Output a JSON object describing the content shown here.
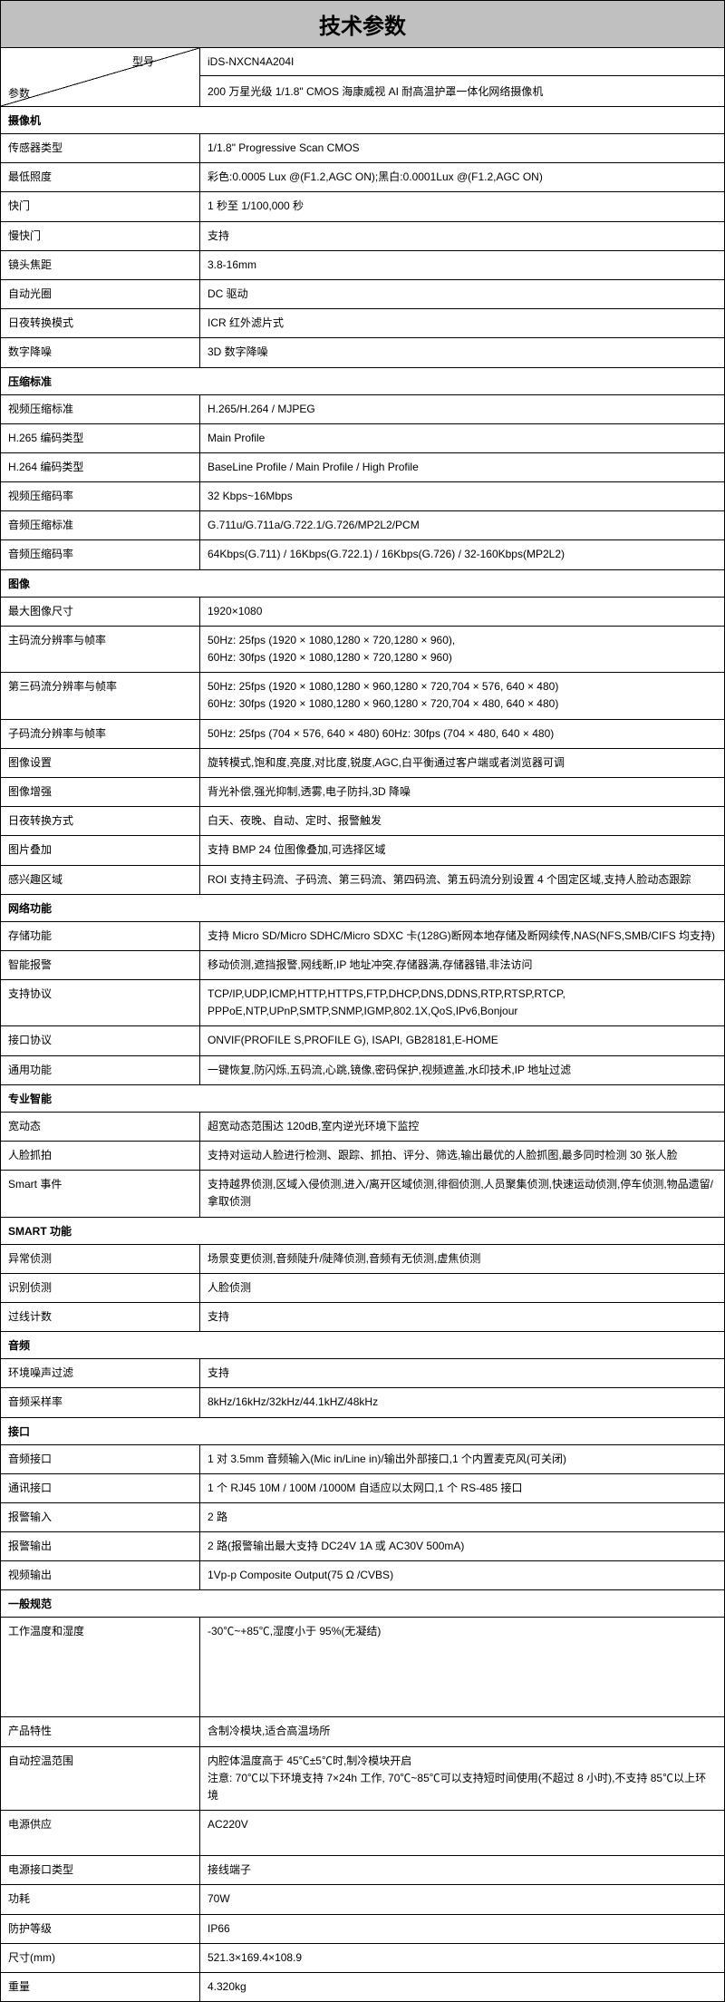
{
  "title": "技术参数",
  "header": {
    "param_label": "参数",
    "model_label": "型号",
    "model_value": "iDS-NXCN4A204I",
    "desc_value": "200 万星光级 1/1.8\" CMOS 海康威视 AI 耐高温护罩一体化网络摄像机"
  },
  "sections": [
    {
      "name": "摄像机",
      "rows": [
        {
          "label": "传感器类型",
          "value": "1/1.8\" Progressive Scan CMOS"
        },
        {
          "label": "最低照度",
          "value": "彩色:0.0005 Lux @(F1.2,AGC ON);黑白:0.0001Lux @(F1.2,AGC ON)"
        },
        {
          "label": "快门",
          "value": "1 秒至 1/100,000 秒"
        },
        {
          "label": "慢快门",
          "value": "支持"
        },
        {
          "label": "镜头焦距",
          "value": "3.8-16mm"
        },
        {
          "label": "自动光圈",
          "value": "DC 驱动"
        },
        {
          "label": "日夜转换模式",
          "value": "ICR 红外滤片式"
        },
        {
          "label": "数字降噪",
          "value": "3D 数字降噪"
        }
      ]
    },
    {
      "name": "压缩标准",
      "rows": [
        {
          "label": "视频压缩标准",
          "value": "H.265/H.264 / MJPEG"
        },
        {
          "label": "H.265 编码类型",
          "value": "Main Profile"
        },
        {
          "label": "H.264 编码类型",
          "value": "BaseLine Profile / Main Profile / High Profile"
        },
        {
          "label": "视频压缩码率",
          "value": "32 Kbps~16Mbps"
        },
        {
          "label": "音频压缩标准",
          "value": "G.711u/G.711a/G.722.1/G.726/MP2L2/PCM"
        },
        {
          "label": "音频压缩码率",
          "value": "64Kbps(G.711) / 16Kbps(G.722.1) / 16Kbps(G.726) / 32-160Kbps(MP2L2)"
        }
      ]
    },
    {
      "name": "图像",
      "rows": [
        {
          "label": "最大图像尺寸",
          "value": "1920×1080"
        },
        {
          "label": "主码流分辨率与帧率",
          "value": "50Hz: 25fps (1920 × 1080,1280 × 720,1280 × 960),\n60Hz: 30fps (1920 × 1080,1280 × 720,1280 × 960)"
        },
        {
          "label": "第三码流分辨率与帧率",
          "value": "50Hz: 25fps (1920 × 1080,1280 × 960,1280 × 720,704 × 576, 640 × 480)\n60Hz: 30fps (1920 × 1080,1280 × 960,1280 × 720,704 × 480, 640 × 480)"
        },
        {
          "label": "子码流分辨率与帧率",
          "value": "50Hz: 25fps (704 × 576, 640 × 480)      60Hz: 30fps (704 × 480, 640 × 480)"
        },
        {
          "label": "图像设置",
          "value": "旋转模式,饱和度,亮度,对比度,锐度,AGC,白平衡通过客户端或者浏览器可调"
        },
        {
          "label": "图像增强",
          "value": "背光补偿,强光抑制,透雾,电子防抖,3D 降噪"
        },
        {
          "label": "日夜转换方式",
          "value": "白天、夜晚、自动、定时、报警触发"
        },
        {
          "label": "图片叠加",
          "value": "支持 BMP 24 位图像叠加,可选择区域"
        },
        {
          "label": "感兴趣区域",
          "value": "ROI 支持主码流、子码流、第三码流、第四码流、第五码流分别设置 4 个固定区域,支持人脸动态跟踪"
        }
      ]
    },
    {
      "name": "网络功能",
      "rows": [
        {
          "label": "存储功能",
          "value": "支持 Micro SD/Micro SDHC/Micro SDXC 卡(128G)断网本地存储及断网续传,NAS(NFS,SMB/CIFS 均支持)"
        },
        {
          "label": "智能报警",
          "value": "移动侦测,遮挡报警,网线断,IP 地址冲突,存储器满,存储器错,非法访问"
        },
        {
          "label": "支持协议",
          "value": "TCP/IP,UDP,ICMP,HTTP,HTTPS,FTP,DHCP,DNS,DDNS,RTP,RTSP,RTCP,\nPPPoE,NTP,UPnP,SMTP,SNMP,IGMP,802.1X,QoS,IPv6,Bonjour"
        },
        {
          "label": "接口协议",
          "value": "ONVIF(PROFILE S,PROFILE G), ISAPI, GB28181,E-HOME"
        },
        {
          "label": "通用功能",
          "value": "一键恢复,防闪烁,五码流,心跳,镜像,密码保护,视频遮盖,水印技术,IP 地址过滤"
        }
      ]
    },
    {
      "name": "专业智能",
      "rows": [
        {
          "label": "宽动态",
          "value": "超宽动态范围达 120dB,室内逆光环境下监控"
        },
        {
          "label": "人脸抓拍",
          "value": "支持对运动人脸进行检测、跟踪、抓拍、评分、筛选,输出最优的人脸抓图,最多同时检测 30 张人脸"
        },
        {
          "label": "Smart 事件",
          "value": "支持越界侦测,区域入侵侦测,进入/离开区域侦测,徘徊侦测,人员聚集侦测,快速运动侦测,停车侦测,物品遗留/拿取侦测"
        }
      ]
    },
    {
      "name": "SMART 功能",
      "rows": [
        {
          "label": "异常侦测",
          "value": "场景变更侦测,音频陡升/陡降侦测,音频有无侦测,虚焦侦测"
        },
        {
          "label": "识别侦测",
          "value": "人脸侦测"
        },
        {
          "label": "过线计数",
          "value": "支持"
        }
      ]
    },
    {
      "name": "音频",
      "rows": [
        {
          "label": "环境噪声过滤",
          "value": "支持"
        },
        {
          "label": "音频采样率",
          "value": "8kHz/16kHz/32kHz/44.1kHZ/48kHz"
        }
      ]
    },
    {
      "name": "接口",
      "rows": [
        {
          "label": "音频接口",
          "value": "1 对 3.5mm 音频输入(Mic in/Line in)/输出外部接口,1 个内置麦克风(可关闭)"
        },
        {
          "label": "通讯接口",
          "value": "1 个 RJ45 10M / 100M /1000M 自适应以太网口,1 个 RS-485 接口"
        },
        {
          "label": "报警输入",
          "value": "2 路"
        },
        {
          "label": "报警输出",
          "value": "2 路(报警输出最大支持 DC24V 1A 或 AC30V 500mA)"
        },
        {
          "label": "视频输出",
          "value": "1Vp-p Composite Output(75 Ω /CVBS)"
        }
      ]
    },
    {
      "name": "一般规范",
      "rows": [
        {
          "label": "工作温度和湿度",
          "value": "-30℃~+85℃,湿度小于 95%(无凝结)",
          "tall": true
        },
        {
          "label": "产品特性",
          "value": "含制冷模块,适合高温场所"
        },
        {
          "label": "自动控温范围",
          "value": "内腔体温度高于 45℃±5℃时,制冷模块开启\n注意: 70℃以下环境支持 7×24h 工作, 70℃~85℃可以支持短时间使用(不超过 8 小时),不支持 85℃以上环境"
        },
        {
          "label": "电源供应",
          "value": "AC220V",
          "tall_small": true
        },
        {
          "label": "电源接口类型",
          "value": "接线端子"
        },
        {
          "label": "功耗",
          "value": "70W"
        },
        {
          "label": "防护等级",
          "value": "IP66"
        },
        {
          "label": "尺寸(mm)",
          "value": "521.3×169.4×108.9"
        },
        {
          "label": "重量",
          "value": "4.320kg"
        }
      ]
    }
  ]
}
